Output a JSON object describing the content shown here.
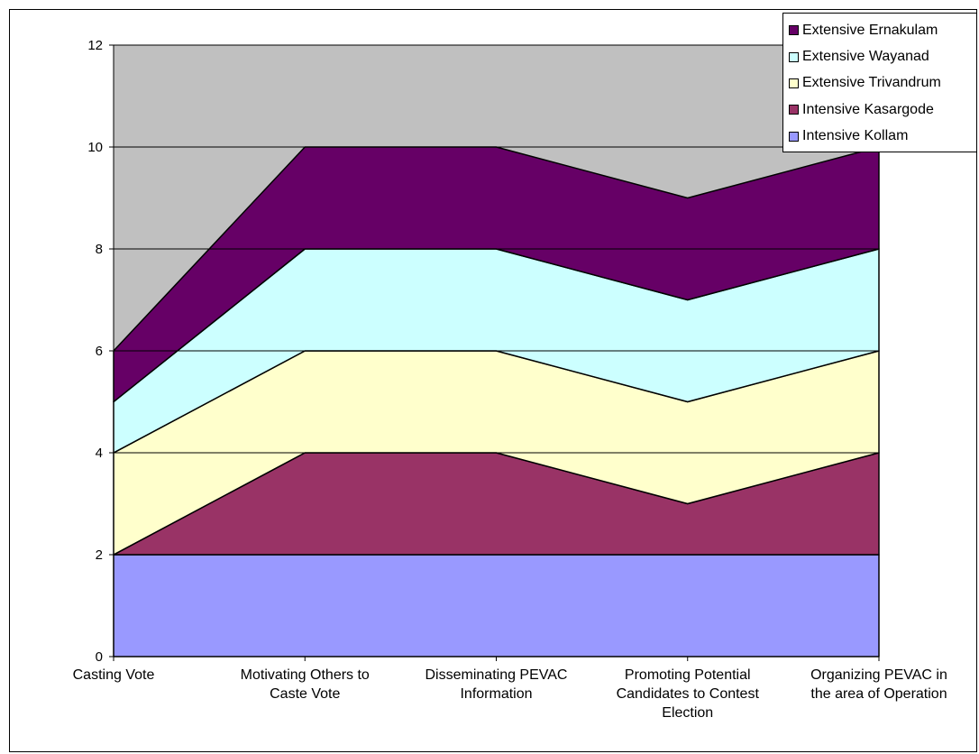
{
  "chart_data": {
    "type": "area",
    "stacked": true,
    "categories": [
      "Casting Vote",
      "Motivating Others to Caste Vote",
      "Disseminating PEVAC Information",
      "Promoting Potential Candidates to Contest Election",
      "Organizing PEVAC in the area of Operation"
    ],
    "category_lines": [
      [
        "Casting Vote"
      ],
      [
        "Motivating Others to",
        "Caste Vote"
      ],
      [
        "Disseminating PEVAC",
        "Information"
      ],
      [
        "Promoting Potential",
        "Candidates to Contest",
        "Election"
      ],
      [
        "Organizing PEVAC in",
        "the area of Operation"
      ]
    ],
    "series": [
      {
        "name": "Intensive Kollam",
        "values": [
          2,
          2,
          2,
          2,
          2
        ],
        "color": "#9999ff"
      },
      {
        "name": "Intensive Kasargode",
        "values": [
          0,
          2,
          2,
          1,
          2
        ],
        "color": "#993366"
      },
      {
        "name": "Extensive Trivandrum",
        "values": [
          2,
          2,
          2,
          2,
          2
        ],
        "color": "#ffffcc"
      },
      {
        "name": "Extensive Wayanad",
        "values": [
          1,
          2,
          2,
          2,
          2
        ],
        "color": "#ccffff"
      },
      {
        "name": "Extensive Ernakulam",
        "values": [
          1,
          2,
          2,
          2,
          2
        ],
        "color": "#660066"
      }
    ],
    "legend_order": [
      "Extensive Ernakulam",
      "Extensive Wayanad",
      "Extensive Trivandrum",
      "Intensive Kasargode",
      "Intensive Kollam"
    ],
    "ylim": [
      0,
      12
    ],
    "yticks": [
      0,
      2,
      4,
      6,
      8,
      10,
      12
    ],
    "grid": true,
    "plot_background": "#c0c0c0",
    "legend_position": "top-right",
    "title": "",
    "xlabel": "",
    "ylabel": ""
  }
}
